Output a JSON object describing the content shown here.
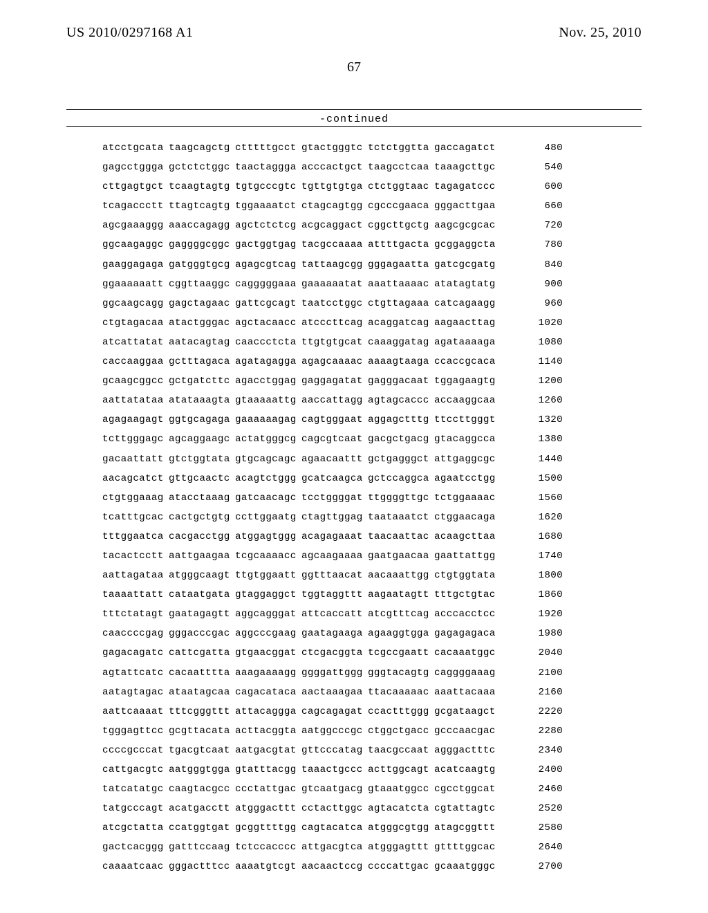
{
  "header": {
    "publication_number": "US 2010/0297168 A1",
    "publication_date": "Nov. 25, 2010",
    "page_number": "67",
    "continued_label": "-continued"
  },
  "sequence": {
    "rows": [
      {
        "groups": [
          "atcctgcata",
          "taagcagctg",
          "ctttttgcct",
          "gtactgggtc",
          "tctctggtta",
          "gaccagatct"
        ],
        "pos": "480"
      },
      {
        "groups": [
          "gagcctggga",
          "gctctctggc",
          "taactaggga",
          "acccactgct",
          "taagcctcaa",
          "taaagcttgc"
        ],
        "pos": "540"
      },
      {
        "groups": [
          "cttgagtgct",
          "tcaagtagtg",
          "tgtgcccgtc",
          "tgttgtgtga",
          "ctctggtaac",
          "tagagatccc"
        ],
        "pos": "600"
      },
      {
        "groups": [
          "tcagaccctt",
          "ttagtcagtg",
          "tggaaaatct",
          "ctagcagtgg",
          "cgcccgaaca",
          "gggacttgaa"
        ],
        "pos": "660"
      },
      {
        "groups": [
          "agcgaaaggg",
          "aaaccagagg",
          "agctctctcg",
          "acgcaggact",
          "cggcttgctg",
          "aagcgcgcac"
        ],
        "pos": "720"
      },
      {
        "groups": [
          "ggcaagaggc",
          "gaggggcggc",
          "gactggtgag",
          "tacgccaaaa",
          "attttgacta",
          "gcggaggcta"
        ],
        "pos": "780"
      },
      {
        "groups": [
          "gaaggagaga",
          "gatgggtgcg",
          "agagcgtcag",
          "tattaagcgg",
          "gggagaatta",
          "gatcgcgatg"
        ],
        "pos": "840"
      },
      {
        "groups": [
          "ggaaaaaatt",
          "cggttaaggc",
          "cagggggaaa",
          "gaaaaaatat",
          "aaattaaaac",
          "atatagtatg"
        ],
        "pos": "900"
      },
      {
        "groups": [
          "ggcaagcagg",
          "gagctagaac",
          "gattcgcagt",
          "taatcctggc",
          "ctgttagaaa",
          "catcagaagg"
        ],
        "pos": "960"
      },
      {
        "groups": [
          "ctgtagacaa",
          "atactgggac",
          "agctacaacc",
          "atcccttcag",
          "acaggatcag",
          "aagaacttag"
        ],
        "pos": "1020"
      },
      {
        "groups": [
          "atcattatat",
          "aatacagtag",
          "caaccctcta",
          "ttgtgtgcat",
          "caaaggatag",
          "agataaaaga"
        ],
        "pos": "1080"
      },
      {
        "groups": [
          "caccaaggaa",
          "gctttagaca",
          "agatagagga",
          "agagcaaaac",
          "aaaagtaaga",
          "ccaccgcaca"
        ],
        "pos": "1140"
      },
      {
        "groups": [
          "gcaagcggcc",
          "gctgatcttc",
          "agacctggag",
          "gaggagatat",
          "gagggacaat",
          "tggagaagtg"
        ],
        "pos": "1200"
      },
      {
        "groups": [
          "aattatataa",
          "atataaagta",
          "gtaaaaattg",
          "aaccattagg",
          "agtagcaccc",
          "accaaggcaa"
        ],
        "pos": "1260"
      },
      {
        "groups": [
          "agagaagagt",
          "ggtgcagaga",
          "gaaaaaagag",
          "cagtgggaat",
          "aggagctttg",
          "ttccttgggt"
        ],
        "pos": "1320"
      },
      {
        "groups": [
          "tcttgggagc",
          "agcaggaagc",
          "actatgggcg",
          "cagcgtcaat",
          "gacgctgacg",
          "gtacaggcca"
        ],
        "pos": "1380"
      },
      {
        "groups": [
          "gacaattatt",
          "gtctggtata",
          "gtgcagcagc",
          "agaacaattt",
          "gctgagggct",
          "attgaggcgc"
        ],
        "pos": "1440"
      },
      {
        "groups": [
          "aacagcatct",
          "gttgcaactc",
          "acagtctggg",
          "gcatcaagca",
          "gctccaggca",
          "agaatcctgg"
        ],
        "pos": "1500"
      },
      {
        "groups": [
          "ctgtggaaag",
          "atacctaaag",
          "gatcaacagc",
          "tcctggggat",
          "ttggggttgc",
          "tctggaaaac"
        ],
        "pos": "1560"
      },
      {
        "groups": [
          "tcatttgcac",
          "cactgctgtg",
          "ccttggaatg",
          "ctagttggag",
          "taataaatct",
          "ctggaacaga"
        ],
        "pos": "1620"
      },
      {
        "groups": [
          "tttggaatca",
          "cacgacctgg",
          "atggagtggg",
          "acagagaaat",
          "taacaattac",
          "acaagcttaa"
        ],
        "pos": "1680"
      },
      {
        "groups": [
          "tacactcctt",
          "aattgaagaa",
          "tcgcaaaacc",
          "agcaagaaaa",
          "gaatgaacaa",
          "gaattattgg"
        ],
        "pos": "1740"
      },
      {
        "groups": [
          "aattagataa",
          "atgggcaagt",
          "ttgtggaatt",
          "ggtttaacat",
          "aacaaattgg",
          "ctgtggtata"
        ],
        "pos": "1800"
      },
      {
        "groups": [
          "taaaattatt",
          "cataatgata",
          "gtaggaggct",
          "tggtaggttt",
          "aagaatagtt",
          "tttgctgtac"
        ],
        "pos": "1860"
      },
      {
        "groups": [
          "tttctatagt",
          "gaatagagtt",
          "aggcagggat",
          "attcaccatt",
          "atcgtttcag",
          "acccacctcc"
        ],
        "pos": "1920"
      },
      {
        "groups": [
          "caaccccgag",
          "gggacccgac",
          "aggcccgaag",
          "gaatagaaga",
          "agaaggtgga",
          "gagagagaca"
        ],
        "pos": "1980"
      },
      {
        "groups": [
          "gagacagatc",
          "cattcgatta",
          "gtgaacggat",
          "ctcgacggta",
          "tcgccgaatt",
          "cacaaatggc"
        ],
        "pos": "2040"
      },
      {
        "groups": [
          "agtattcatc",
          "cacaatttta",
          "aaagaaaagg",
          "ggggattggg",
          "gggtacagtg",
          "caggggaaag"
        ],
        "pos": "2100"
      },
      {
        "groups": [
          "aatagtagac",
          "ataatagcaa",
          "cagacataca",
          "aactaaagaa",
          "ttacaaaaac",
          "aaattacaaa"
        ],
        "pos": "2160"
      },
      {
        "groups": [
          "aattcaaaat",
          "tttcgggttt",
          "attacaggga",
          "cagcagagat",
          "ccactttggg",
          "gcgataagct"
        ],
        "pos": "2220"
      },
      {
        "groups": [
          "tgggagttcc",
          "gcgttacata",
          "acttacggta",
          "aatggcccgc",
          "ctggctgacc",
          "gcccaacgac"
        ],
        "pos": "2280"
      },
      {
        "groups": [
          "ccccgcccat",
          "tgacgtcaat",
          "aatgacgtat",
          "gttcccatag",
          "taacgccaat",
          "agggactttc"
        ],
        "pos": "2340"
      },
      {
        "groups": [
          "cattgacgtc",
          "aatgggtgga",
          "gtatttacgg",
          "taaactgccc",
          "acttggcagt",
          "acatcaagtg"
        ],
        "pos": "2400"
      },
      {
        "groups": [
          "tatcatatgc",
          "caagtacgcc",
          "ccctattgac",
          "gtcaatgacg",
          "gtaaatggcc",
          "cgcctggcat"
        ],
        "pos": "2460"
      },
      {
        "groups": [
          "tatgcccagt",
          "acatgacctt",
          "atgggacttt",
          "cctacttggc",
          "agtacatcta",
          "cgtattagtc"
        ],
        "pos": "2520"
      },
      {
        "groups": [
          "atcgctatta",
          "ccatggtgat",
          "gcggttttgg",
          "cagtacatca",
          "atgggcgtgg",
          "atagcggttt"
        ],
        "pos": "2580"
      },
      {
        "groups": [
          "gactcacggg",
          "gatttccaag",
          "tctccacccc",
          "attgacgtca",
          "atgggagttt",
          "gttttggcac"
        ],
        "pos": "2640"
      },
      {
        "groups": [
          "caaaatcaac",
          "gggactttcc",
          "aaaatgtcgt",
          "aacaactccg",
          "ccccattgac",
          "gcaaatgggc"
        ],
        "pos": "2700"
      }
    ]
  }
}
